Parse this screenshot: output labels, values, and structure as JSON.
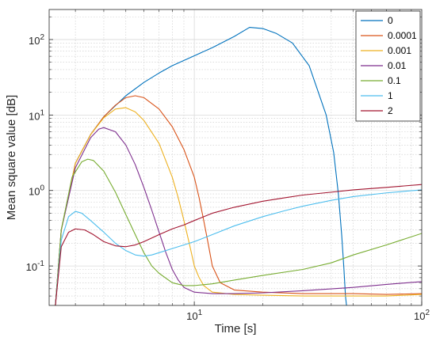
{
  "chart_data": {
    "type": "line",
    "xlabel": "Time [s]",
    "ylabel": "Mean square value [dB]",
    "xscale": "log",
    "yscale": "log",
    "xlim": [
      2.3,
      100
    ],
    "ylim": [
      0.03,
      250
    ],
    "grid": true,
    "minor_grid": true,
    "legend_position": "top-right",
    "x_ticks": [
      {
        "value": 10,
        "base": "10",
        "exp": "1"
      },
      {
        "value": 100,
        "base": "10",
        "exp": "2"
      }
    ],
    "y_ticks": [
      {
        "value": 0.1,
        "base": "10",
        "exp": "-1"
      },
      {
        "value": 1,
        "base": "10",
        "exp": "0"
      },
      {
        "value": 10,
        "base": "10",
        "exp": "1"
      },
      {
        "value": 100,
        "base": "10",
        "exp": "2"
      }
    ],
    "series": [
      {
        "name": "0",
        "color": "#0072bd",
        "x": [
          2.45,
          2.6,
          3.0,
          3.5,
          4.0,
          5.0,
          6.0,
          7.0,
          8.0,
          10,
          12,
          15,
          17.5,
          20,
          23,
          27,
          32,
          38,
          41,
          43,
          44.5,
          45.5,
          46.2,
          46.7
        ],
        "y": [
          0.03,
          0.3,
          2.3,
          5.5,
          9.5,
          18,
          27,
          36,
          45,
          61,
          78,
          110,
          145,
          140,
          120,
          90,
          45,
          10,
          3.2,
          0.9,
          0.25,
          0.09,
          0.04,
          0.03
        ]
      },
      {
        "name": "0.0001",
        "color": "#d95319",
        "x": [
          2.45,
          2.6,
          3.0,
          3.5,
          4.0,
          4.5,
          5.0,
          5.5,
          6.0,
          7.0,
          8.0,
          9.0,
          10,
          10.5,
          11,
          11.5,
          12,
          13,
          15,
          20,
          30,
          50,
          70,
          100
        ],
        "y": [
          0.03,
          0.3,
          2.3,
          5.5,
          9.5,
          13.5,
          17,
          18,
          17,
          12,
          7,
          3.5,
          1.5,
          0.8,
          0.4,
          0.2,
          0.1,
          0.06,
          0.048,
          0.045,
          0.043,
          0.043,
          0.042,
          0.043
        ]
      },
      {
        "name": "0.001",
        "color": "#edb120",
        "x": [
          2.45,
          2.6,
          3.0,
          3.5,
          4.0,
          4.5,
          5.0,
          5.5,
          6.0,
          7.0,
          8.0,
          8.5,
          9.0,
          9.5,
          10,
          10.5,
          11,
          12,
          15,
          20,
          30,
          50,
          70,
          100
        ],
        "y": [
          0.03,
          0.3,
          2.3,
          5.5,
          9.2,
          12,
          12.5,
          11,
          8.5,
          4.2,
          1.5,
          0.8,
          0.4,
          0.2,
          0.1,
          0.07,
          0.055,
          0.045,
          0.042,
          0.041,
          0.04,
          0.04,
          0.04,
          0.042
        ]
      },
      {
        "name": "0.01",
        "color": "#7e2f8e",
        "x": [
          2.45,
          2.6,
          3.0,
          3.5,
          3.8,
          4.0,
          4.5,
          5.0,
          5.5,
          6.0,
          6.5,
          7.0,
          7.5,
          8.0,
          8.5,
          9.0,
          10,
          12,
          15,
          20,
          30,
          50,
          70,
          100
        ],
        "y": [
          0.03,
          0.3,
          2.0,
          5.0,
          6.5,
          6.8,
          6.0,
          4.0,
          2.2,
          1.1,
          0.55,
          0.28,
          0.15,
          0.09,
          0.065,
          0.052,
          0.045,
          0.043,
          0.043,
          0.044,
          0.047,
          0.052,
          0.057,
          0.062
        ]
      },
      {
        "name": "0.1",
        "color": "#77ac30",
        "x": [
          2.45,
          2.6,
          2.9,
          3.2,
          3.4,
          3.6,
          4.0,
          4.5,
          5.0,
          5.5,
          6.0,
          6.5,
          7.0,
          8.0,
          9.0,
          10,
          12,
          15,
          20,
          30,
          40,
          50,
          70,
          100
        ],
        "y": [
          0.03,
          0.3,
          1.5,
          2.4,
          2.6,
          2.5,
          1.8,
          0.95,
          0.48,
          0.26,
          0.15,
          0.1,
          0.08,
          0.06,
          0.055,
          0.055,
          0.058,
          0.065,
          0.075,
          0.09,
          0.11,
          0.14,
          0.19,
          0.27
        ]
      },
      {
        "name": "1",
        "color": "#4dbeee",
        "x": [
          2.45,
          2.6,
          2.8,
          3.0,
          3.2,
          3.5,
          4.0,
          4.5,
          5.0,
          5.5,
          6.0,
          6.5,
          7.0,
          8.0,
          9.0,
          10,
          12,
          15,
          20,
          25,
          30,
          40,
          50,
          70,
          100
        ],
        "y": [
          0.03,
          0.22,
          0.45,
          0.53,
          0.5,
          0.4,
          0.28,
          0.2,
          0.16,
          0.14,
          0.135,
          0.14,
          0.15,
          0.17,
          0.19,
          0.21,
          0.26,
          0.34,
          0.45,
          0.54,
          0.62,
          0.74,
          0.83,
          0.93,
          1.02
        ]
      },
      {
        "name": "2",
        "color": "#a2142f",
        "x": [
          2.45,
          2.6,
          2.8,
          3.0,
          3.3,
          3.6,
          4.0,
          4.5,
          5.0,
          5.5,
          6.0,
          7.0,
          8.0,
          9.0,
          10,
          12,
          15,
          20,
          25,
          30,
          40,
          50,
          70,
          100
        ],
        "y": [
          0.03,
          0.18,
          0.28,
          0.31,
          0.3,
          0.26,
          0.21,
          0.185,
          0.18,
          0.19,
          0.21,
          0.26,
          0.31,
          0.35,
          0.4,
          0.5,
          0.6,
          0.72,
          0.8,
          0.87,
          0.95,
          1.02,
          1.1,
          1.2
        ]
      }
    ]
  }
}
